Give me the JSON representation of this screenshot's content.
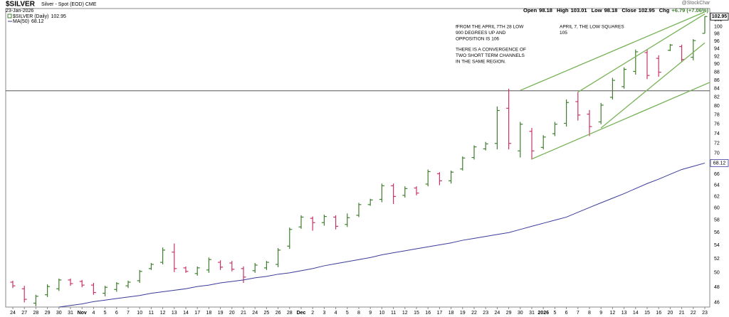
{
  "chart_data": {
    "type": "ohlc",
    "title": "$SILVER",
    "subtitle": "Silver - Spot (EOD) CME",
    "date": "23-Jan-2026",
    "watermark": "@StockCharts.com",
    "stats": [
      {
        "label": "Open",
        "value": 98.18
      },
      {
        "label": "High",
        "value": 103.01
      },
      {
        "label": "Low",
        "value": 98.18
      },
      {
        "label": "Close",
        "value": 102.95
      }
    ],
    "change_label": "Chg",
    "change": "+6.79 (+7.06%)",
    "categories": [
      "24",
      "27",
      "28",
      "29",
      "30",
      "31",
      "Nov",
      "4",
      "5",
      "6",
      "7",
      "10",
      "11",
      "12",
      "13",
      "14",
      "17",
      "18",
      "19",
      "20",
      "21",
      "24",
      "25",
      "26",
      "28",
      "Dec",
      "2",
      "3",
      "4",
      "5",
      "8",
      "9",
      "10",
      "11",
      "12",
      "15",
      "16",
      "17",
      "18",
      "19",
      "22",
      "23",
      "24",
      "29",
      "30",
      "31",
      "2026",
      "5",
      "6",
      "7",
      "8",
      "9",
      "12",
      "13",
      "14",
      "15",
      "16",
      "20",
      "21",
      "22",
      "23"
    ],
    "series": [
      {
        "name": "$SILVER (Daily)",
        "up_color": "#3f7f2f",
        "down_color": "#cc3366",
        "open": [
          48.7,
          47.8,
          45.9,
          47.0,
          47.8,
          49.0,
          48.8,
          48.3,
          47.2,
          47.7,
          48.2,
          48.9,
          50.6,
          51.5,
          53.0,
          50.7,
          49.9,
          50.4,
          51.5,
          51.4,
          50.6,
          50.3,
          50.7,
          51.2,
          53.9,
          56.9,
          58.3,
          57.6,
          58.5,
          57.3,
          58.8,
          60.6,
          61.5,
          63.9,
          62.2,
          63.5,
          64.2,
          66.1,
          64.8,
          67.0,
          69.2,
          70.9,
          72.0,
          79.5,
          70.5,
          74.5,
          71.2,
          74.0,
          76.2,
          81.0,
          78.2,
          76.5,
          82.0,
          84.5,
          88.2,
          93.0,
          91.5,
          93.6,
          94.6,
          91.8,
          98.18
        ],
        "high": [
          48.9,
          48.2,
          47.0,
          48.4,
          49.2,
          49.2,
          49.0,
          48.6,
          48.2,
          48.7,
          48.9,
          50.4,
          51.4,
          53.7,
          54.3,
          50.9,
          50.9,
          52.2,
          51.8,
          51.7,
          50.9,
          51.4,
          51.7,
          53.6,
          56.8,
          58.8,
          58.6,
          58.9,
          58.8,
          59.1,
          60.9,
          61.6,
          64.3,
          64.3,
          63.8,
          63.8,
          66.9,
          66.4,
          66.7,
          69.4,
          71.6,
          72.3,
          79.9,
          84.0,
          76.5,
          75.2,
          73.7,
          76.5,
          81.5,
          83.2,
          79.1,
          80.7,
          86.6,
          89.2,
          93.8,
          93.8,
          92.3,
          95.3,
          95.1,
          96.6,
          103.01
        ],
        "low": [
          47.9,
          46.0,
          45.5,
          46.7,
          47.5,
          48.2,
          48.0,
          47.0,
          46.8,
          47.4,
          47.9,
          48.6,
          50.4,
          51.2,
          50.1,
          50.0,
          49.6,
          50.0,
          50.4,
          50.2,
          48.6,
          50.0,
          50.4,
          50.8,
          53.5,
          56.6,
          56.3,
          57.1,
          56.5,
          56.9,
          58.5,
          60.4,
          61.0,
          60.7,
          61.8,
          62.2,
          63.8,
          64.0,
          64.3,
          66.7,
          68.8,
          70.6,
          70.8,
          70.8,
          69.2,
          68.8,
          70.8,
          73.5,
          75.5,
          76.8,
          73.5,
          76.0,
          81.5,
          84.0,
          87.4,
          86.3,
          86.9,
          93.4,
          90.5,
          91.0,
          98.18
        ],
        "close": [
          48.2,
          46.4,
          46.8,
          48.1,
          49.0,
          48.5,
          48.3,
          47.3,
          48.0,
          48.5,
          48.7,
          50.2,
          51.2,
          53.3,
          50.6,
          50.2,
          50.7,
          51.9,
          50.8,
          50.5,
          49.4,
          51.1,
          51.5,
          53.3,
          56.5,
          58.5,
          57.6,
          58.6,
          57.0,
          58.4,
          60.6,
          61.4,
          63.9,
          62.0,
          63.4,
          62.6,
          66.5,
          64.8,
          66.4,
          69.1,
          71.3,
          71.9,
          79.0,
          72.0,
          76.0,
          70.5,
          73.3,
          76.0,
          80.8,
          78.0,
          75.5,
          80.2,
          86.0,
          88.7,
          93.2,
          87.2,
          88.0,
          95.0,
          91.2,
          96.2,
          102.95
        ]
      },
      {
        "name": "MA(50)",
        "color": "#3b3b9a",
        "values": [
          null,
          null,
          null,
          null,
          45.4,
          45.6,
          45.8,
          46.1,
          46.3,
          46.5,
          46.7,
          46.9,
          47.2,
          47.4,
          47.6,
          47.8,
          48.1,
          48.3,
          48.6,
          48.8,
          49.0,
          49.3,
          49.5,
          49.8,
          50.0,
          50.3,
          50.6,
          51.0,
          51.3,
          51.6,
          51.9,
          52.2,
          52.6,
          52.9,
          53.2,
          53.5,
          53.8,
          54.1,
          54.4,
          54.8,
          55.1,
          55.4,
          55.7,
          56.0,
          56.5,
          57.0,
          57.5,
          58.0,
          58.5,
          59.3,
          60.1,
          60.9,
          61.7,
          62.5,
          63.4,
          64.3,
          65.1,
          66.0,
          66.9,
          67.5,
          68.12
        ]
      }
    ],
    "ylim": [
      45.4,
      105.3
    ],
    "yticks": [
      46,
      48,
      50,
      52,
      54,
      56,
      58,
      60,
      62,
      64,
      66,
      68,
      70,
      72,
      74,
      76,
      78,
      80,
      82,
      84,
      86,
      88,
      90,
      92,
      94,
      96,
      98,
      100,
      102
    ],
    "log_scale": true,
    "grid": false,
    "reference_line": {
      "value": 83.5,
      "color": "#555555"
    },
    "trendlines": {
      "color": "#77b255",
      "lines": [
        {
          "x": [
            44,
            60
          ],
          "y": [
            83.6,
            104.3
          ]
        },
        {
          "x": [
            45,
            61
          ],
          "y": [
            68.9,
            86.2
          ]
        },
        {
          "x": [
            49,
            60
          ],
          "y": [
            83.2,
            103.7
          ]
        },
        {
          "x": [
            51,
            60
          ],
          "y": [
            75.2,
            95.6
          ]
        }
      ]
    },
    "annotations": [
      {
        "color": "#3333cc",
        "lines": [
          "fFROM THE APRIL 7TH 28 LOW",
          "900 DEGREES UP AND",
          "OPPOSITION IS 106"
        ]
      },
      {
        "color": "#3333cc",
        "lines": [
          "THERE IS A CONVERGENCE OF",
          "TWO SHORT TERM CHANNELS",
          "IN THE SAME REGION."
        ]
      },
      {
        "color": "#3333cc",
        "lines": [
          "APRIL 7, THE LOW SQUARES",
          "105"
        ]
      }
    ]
  }
}
